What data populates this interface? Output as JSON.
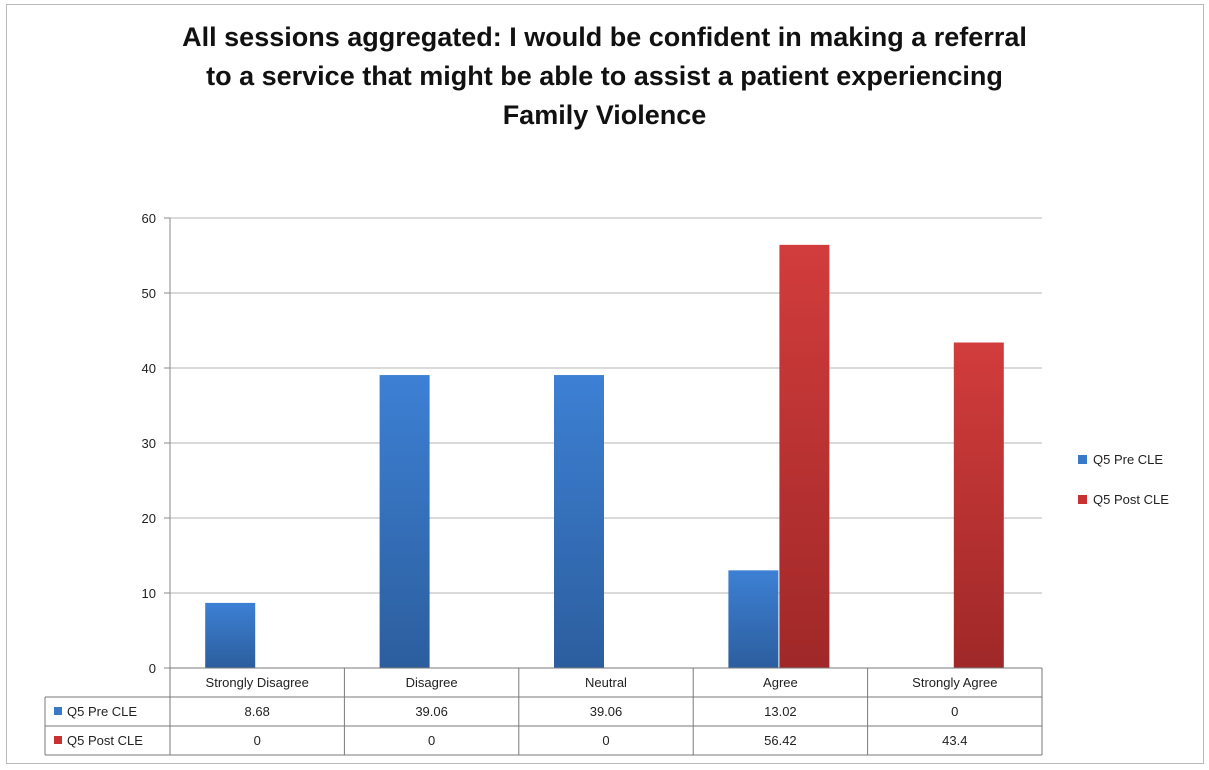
{
  "chart_data": {
    "type": "bar",
    "title_lines": [
      "All sessions aggregated: I would be confident in making a referral",
      "to a service that might be able to assist a patient experiencing",
      "Family Violence"
    ],
    "categories": [
      "Strongly Disagree",
      "Disagree",
      "Neutral",
      "Agree",
      "Strongly Agree"
    ],
    "series": [
      {
        "name": "Q5 Pre CLE",
        "color": "#3a78c8",
        "values": [
          8.68,
          39.06,
          39.06,
          13.02,
          0
        ]
      },
      {
        "name": "Q5 Post CLE",
        "color": "#c83232",
        "values": [
          0,
          0,
          0,
          56.42,
          43.4
        ]
      }
    ],
    "value_labels": [
      [
        "8.68",
        "39.06",
        "39.06",
        "13.02",
        "0"
      ],
      [
        "0",
        "0",
        "0",
        "56.42",
        "43.4"
      ]
    ],
    "ylim": [
      0,
      60
    ],
    "yticks": [
      0,
      10,
      20,
      30,
      40,
      50,
      60
    ],
    "grid": true,
    "legend_position": "right",
    "data_table": true
  }
}
